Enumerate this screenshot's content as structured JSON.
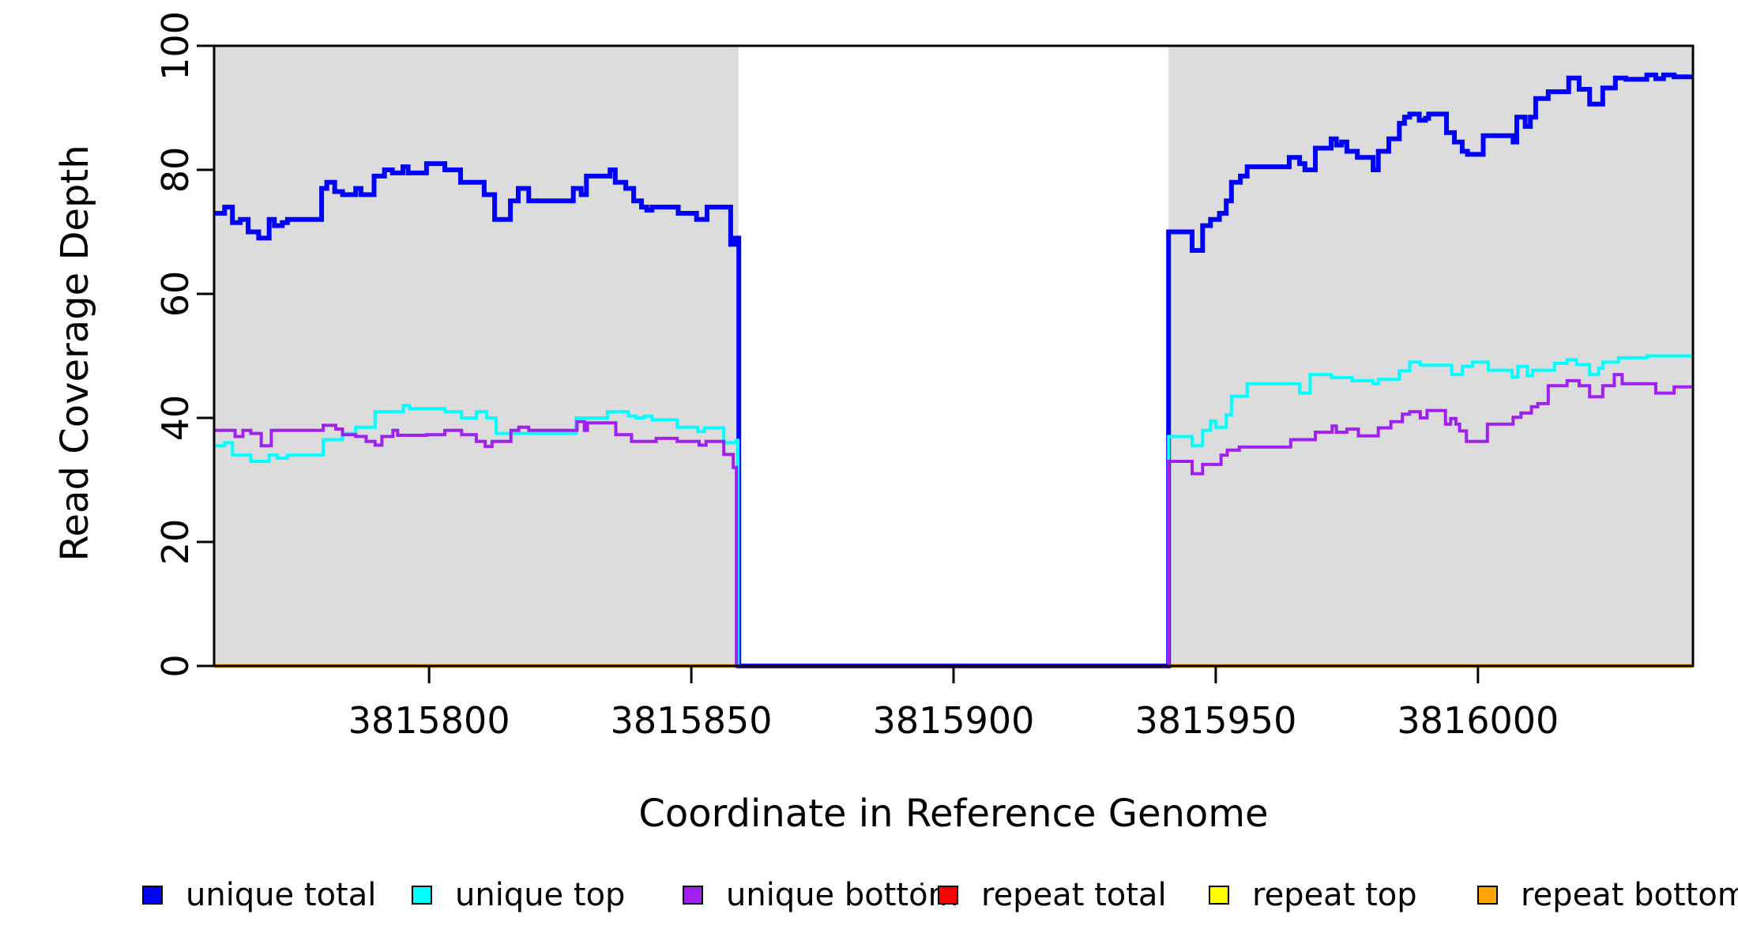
{
  "figure": {
    "y_axis_title": "Read Coverage Depth",
    "x_axis_title": "Coordinate in Reference Genome"
  },
  "legend": {
    "items": [
      {
        "label": "unique total",
        "color": "#0000FF"
      },
      {
        "label": "unique top",
        "color": "#00FFFF"
      },
      {
        "label": "unique bottom",
        "color": "#A020F0"
      },
      {
        "label": "repeat total",
        "color": "#FF0000"
      },
      {
        "label": "repeat top",
        "color": "#FFFF00"
      },
      {
        "label": "repeat bottom",
        "color": "#FFA500"
      }
    ]
  },
  "chart_data": {
    "type": "line",
    "subtype": "step",
    "title": "",
    "xlabel": "Coordinate in Reference Genome",
    "ylabel": "Read Coverage Depth",
    "xlim": [
      3815759,
      3816041
    ],
    "ylim": [
      0,
      100
    ],
    "x_ticks": [
      3815800,
      3815850,
      3815900,
      3815950,
      3816000
    ],
    "y_ticks": [
      0,
      20,
      40,
      60,
      80,
      100
    ],
    "grid": false,
    "legend_position": "bottom",
    "plot_background": "#FFFFFF",
    "shaded_region_color": "#DCDCDC",
    "background_regions": [
      {
        "x0": 3815759,
        "x1": 3815859
      },
      {
        "x0": 3815941,
        "x1": 3816041
      }
    ],
    "gap_region": {
      "x0": 3815859,
      "x1": 3815941
    },
    "series": [
      {
        "name": "repeat total",
        "color": "#FF0000",
        "width": 5,
        "points": [
          [
            3815759,
            0
          ],
          [
            3816041,
            0
          ]
        ]
      },
      {
        "name": "repeat top",
        "color": "#FFFF00",
        "width": 5,
        "points": [
          [
            3815759,
            0
          ],
          [
            3816041,
            0
          ]
        ]
      },
      {
        "name": "repeat bottom",
        "color": "#FFA500",
        "width": 5,
        "points": [
          [
            3815759,
            0
          ],
          [
            3816041,
            0
          ]
        ]
      },
      {
        "name": "unique total",
        "color": "#0000FF",
        "width": 6,
        "points": [
          [
            3815759,
            73
          ],
          [
            3815761,
            74
          ],
          [
            3815762.5,
            71.5
          ],
          [
            3815764,
            72
          ],
          [
            3815765.5,
            70
          ],
          [
            3815767.5,
            69
          ],
          [
            3815769.5,
            72
          ],
          [
            3815770.5,
            71
          ],
          [
            3815772,
            71.5
          ],
          [
            3815773,
            72
          ],
          [
            3815779.5,
            77
          ],
          [
            3815780.5,
            78
          ],
          [
            3815782,
            76.5
          ],
          [
            3815783.5,
            76
          ],
          [
            3815786,
            77
          ],
          [
            3815787,
            76
          ],
          [
            3815789.5,
            79
          ],
          [
            3815791.5,
            80
          ],
          [
            3815793,
            79.5
          ],
          [
            3815795,
            80.5
          ],
          [
            3815796,
            79.5
          ],
          [
            3815799.5,
            81
          ],
          [
            3815803,
            80
          ],
          [
            3815806,
            78
          ],
          [
            3815810.5,
            76
          ],
          [
            3815812.5,
            72
          ],
          [
            3815815.5,
            75
          ],
          [
            3815817,
            77
          ],
          [
            3815819,
            75
          ],
          [
            3815827.5,
            77
          ],
          [
            3815829,
            76
          ],
          [
            3815830,
            79
          ],
          [
            3815834.5,
            80
          ],
          [
            3815835.5,
            78
          ],
          [
            3815837.5,
            77
          ],
          [
            3815839,
            75
          ],
          [
            3815840.5,
            74
          ],
          [
            3815841.5,
            73.5
          ],
          [
            3815842.5,
            74
          ],
          [
            3815847.5,
            73
          ],
          [
            3815851,
            72
          ],
          [
            3815853,
            74
          ],
          [
            3815857.5,
            68
          ],
          [
            3815858.3,
            69
          ],
          [
            3815859.05,
            0
          ],
          [
            3815941,
            70
          ],
          [
            3815945.5,
            67
          ],
          [
            3815947.5,
            71
          ],
          [
            3815949,
            72
          ],
          [
            3815950.7,
            73
          ],
          [
            3815952,
            75
          ],
          [
            3815953,
            78
          ],
          [
            3815954.7,
            79
          ],
          [
            3815956,
            80.5
          ],
          [
            3815964,
            82
          ],
          [
            3815966,
            81
          ],
          [
            3815967,
            80
          ],
          [
            3815969,
            83.5
          ],
          [
            3815972,
            85
          ],
          [
            3815973,
            84
          ],
          [
            3815974,
            84.5
          ],
          [
            3815975,
            83
          ],
          [
            3815977,
            82
          ],
          [
            3815980,
            80
          ],
          [
            3815981,
            83
          ],
          [
            3815983,
            85
          ],
          [
            3815985,
            87.5
          ],
          [
            3815986,
            88.5
          ],
          [
            3815987,
            89
          ],
          [
            3815988.8,
            88
          ],
          [
            3815990,
            88.3
          ],
          [
            3815990.6,
            89
          ],
          [
            3815994,
            86
          ],
          [
            3815995.5,
            84.5
          ],
          [
            3815997,
            83
          ],
          [
            3815998,
            82.5
          ],
          [
            3816001,
            85.5
          ],
          [
            3816006.7,
            84.5
          ],
          [
            3816007.4,
            88.5
          ],
          [
            3816009,
            87
          ],
          [
            3816010,
            88.5
          ],
          [
            3816011,
            91.5
          ],
          [
            3816013.4,
            92.6
          ],
          [
            3816017.3,
            94.8
          ],
          [
            3816019.3,
            93
          ],
          [
            3816021.3,
            90.6
          ],
          [
            3816023.8,
            93.2
          ],
          [
            3816026.2,
            94.8
          ],
          [
            3816028.2,
            94.6
          ],
          [
            3816032.2,
            95.3
          ],
          [
            3816033.9,
            94.7
          ],
          [
            3816035.4,
            95.3
          ],
          [
            3816037.4,
            95
          ]
        ]
      },
      {
        "name": "unique top",
        "color": "#00FFFF",
        "width": 4,
        "points": [
          [
            3815759,
            35.5
          ],
          [
            3815761,
            36
          ],
          [
            3815762.5,
            34
          ],
          [
            3815766,
            33
          ],
          [
            3815769.5,
            34
          ],
          [
            3815771,
            33.5
          ],
          [
            3815773,
            34
          ],
          [
            3815779.8,
            36.5
          ],
          [
            3815783.5,
            37.5
          ],
          [
            3815786,
            38.5
          ],
          [
            3815789.7,
            41
          ],
          [
            3815795.1,
            42
          ],
          [
            3815796.3,
            41.5
          ],
          [
            3815803,
            41
          ],
          [
            3815806.2,
            40
          ],
          [
            3815809,
            41
          ],
          [
            3815811,
            40
          ],
          [
            3815812.8,
            37.5
          ],
          [
            3815828,
            40
          ],
          [
            3815834,
            41
          ],
          [
            3815838,
            40.3
          ],
          [
            3815839.5,
            40
          ],
          [
            3815841,
            40.3
          ],
          [
            3815842.5,
            39.7
          ],
          [
            3815847.3,
            38.5
          ],
          [
            3815851.2,
            37.8
          ],
          [
            3815852.5,
            38.4
          ],
          [
            3815856.2,
            36
          ],
          [
            3815858.55,
            36.4
          ],
          [
            3815858.9,
            0
          ],
          [
            3815941,
            37
          ],
          [
            3815945.5,
            35.5
          ],
          [
            3815947.5,
            38
          ],
          [
            3815949,
            39.5
          ],
          [
            3815950,
            38.5
          ],
          [
            3815952,
            40.5
          ],
          [
            3815953,
            43.5
          ],
          [
            3815956,
            45.5
          ],
          [
            3815966,
            44
          ],
          [
            3815968,
            47
          ],
          [
            3815972,
            46.5
          ],
          [
            3815976,
            46
          ],
          [
            3815980,
            45.5
          ],
          [
            3815981,
            46.2
          ],
          [
            3815985,
            47.6
          ],
          [
            3815987,
            49
          ],
          [
            3815989,
            48.5
          ],
          [
            3815995,
            47
          ],
          [
            3815997,
            48.3
          ],
          [
            3815999,
            49
          ],
          [
            3816002,
            47.7
          ],
          [
            3816006.5,
            46.6
          ],
          [
            3816007.6,
            48.3
          ],
          [
            3816009.4,
            46.8
          ],
          [
            3816010.4,
            47.7
          ],
          [
            3816014.6,
            48.8
          ],
          [
            3816017,
            49.4
          ],
          [
            3816018.8,
            48.6
          ],
          [
            3816021.3,
            47
          ],
          [
            3816023,
            48
          ],
          [
            3816023.8,
            49
          ],
          [
            3816026.8,
            49.7
          ],
          [
            3816032.2,
            50
          ]
        ]
      },
      {
        "name": "unique bottom",
        "color": "#A020F0",
        "width": 4,
        "points": [
          [
            3815759,
            38
          ],
          [
            3815763,
            37
          ],
          [
            3815764.5,
            38
          ],
          [
            3815766,
            37.5
          ],
          [
            3815768,
            35.5
          ],
          [
            3815769.9,
            38
          ],
          [
            3815779.8,
            38.8
          ],
          [
            3815782.2,
            38.2
          ],
          [
            3815783.5,
            37.3
          ],
          [
            3815786,
            37
          ],
          [
            3815788,
            36.2
          ],
          [
            3815789.7,
            35.6
          ],
          [
            3815791,
            37
          ],
          [
            3815793.1,
            38
          ],
          [
            3815794,
            37.2
          ],
          [
            3815799.5,
            37.3
          ],
          [
            3815803,
            38
          ],
          [
            3815806.2,
            37.3
          ],
          [
            3815809,
            36.2
          ],
          [
            3815810.7,
            35.4
          ],
          [
            3815812,
            36.2
          ],
          [
            3815815.6,
            38
          ],
          [
            3815817.1,
            38.5
          ],
          [
            3815819,
            38
          ],
          [
            3815828.2,
            39.4
          ],
          [
            3815829.6,
            38
          ],
          [
            3815830.2,
            39.2
          ],
          [
            3815835.6,
            37.3
          ],
          [
            3815838.6,
            36.2
          ],
          [
            3815843.3,
            36.7
          ],
          [
            3815847.3,
            36.2
          ],
          [
            3815851.5,
            35.6
          ],
          [
            3815852.8,
            36.2
          ],
          [
            3815856.2,
            34.1
          ],
          [
            3815858,
            32
          ],
          [
            3815858.6,
            0
          ],
          [
            3815941,
            33
          ],
          [
            3815945.5,
            31
          ],
          [
            3815947.5,
            32.5
          ],
          [
            3815951,
            34
          ],
          [
            3815952.2,
            34.8
          ],
          [
            3815954.5,
            35.3
          ],
          [
            3815964.3,
            36.5
          ],
          [
            3815969,
            37.7
          ],
          [
            3815972.2,
            38.7
          ],
          [
            3815973,
            37.7
          ],
          [
            3815975,
            38.2
          ],
          [
            3815977.2,
            37.1
          ],
          [
            3815981,
            38.4
          ],
          [
            3815983.4,
            39.4
          ],
          [
            3815985.6,
            40.6
          ],
          [
            3815987,
            41
          ],
          [
            3815989,
            40
          ],
          [
            3815990.3,
            41.2
          ],
          [
            3815993.8,
            39
          ],
          [
            3815994.8,
            39.9
          ],
          [
            3815995.8,
            39
          ],
          [
            3815996.5,
            37.9
          ],
          [
            3815997.8,
            36.2
          ],
          [
            3816001.8,
            39
          ],
          [
            3816006.7,
            40.1
          ],
          [
            3816008.2,
            40.8
          ],
          [
            3816010.2,
            41.8
          ],
          [
            3816011.4,
            42.3
          ],
          [
            3816013.4,
            45.2
          ],
          [
            3816017,
            46
          ],
          [
            3816019.3,
            45.2
          ],
          [
            3816021.3,
            43.4
          ],
          [
            3816023.8,
            45.2
          ],
          [
            3816026,
            47
          ],
          [
            3816027.5,
            45.5
          ],
          [
            3816033.9,
            44
          ],
          [
            3816037.4,
            45
          ]
        ]
      }
    ]
  }
}
